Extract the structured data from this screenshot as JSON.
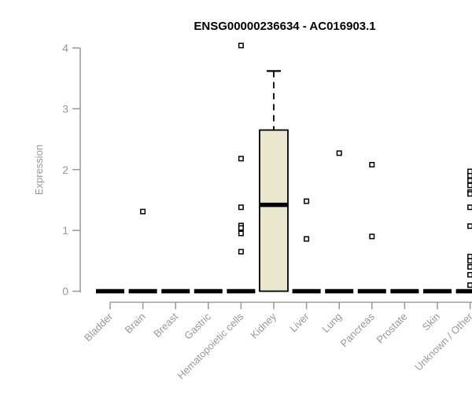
{
  "chart_data": {
    "type": "boxplot",
    "title": "ENSG00000236634 - AC016903.1",
    "ylabel": "Expression",
    "xlabel": "",
    "ylim": [
      0,
      4.1
    ],
    "yticks": [
      0,
      1,
      2,
      3,
      4
    ],
    "grid": "off",
    "legend": "none",
    "categories": [
      "Bladder",
      "Brain",
      "Breast",
      "Gastric",
      "Hematopoietic cells",
      "Kidney",
      "Liver",
      "Lung",
      "Pancreas",
      "Prostate",
      "Skin",
      "Unknown / Other"
    ],
    "series": [
      {
        "category": "Bladder",
        "q1": 0,
        "median": 0,
        "q3": 0,
        "whisker_low": 0,
        "whisker_high": 0,
        "outliers": []
      },
      {
        "category": "Brain",
        "q1": 0,
        "median": 0,
        "q3": 0,
        "whisker_low": 0,
        "whisker_high": 0,
        "outliers": [
          1.31
        ]
      },
      {
        "category": "Breast",
        "q1": 0,
        "median": 0,
        "q3": 0,
        "whisker_low": 0,
        "whisker_high": 0,
        "outliers": []
      },
      {
        "category": "Gastric",
        "q1": 0,
        "median": 0,
        "q3": 0,
        "whisker_low": 0,
        "whisker_high": 0,
        "outliers": []
      },
      {
        "category": "Hematopoietic cells",
        "q1": 0,
        "median": 0,
        "q3": 0,
        "whisker_low": 0,
        "whisker_high": 0,
        "outliers": [
          4.04,
          2.18,
          1.38,
          1.08,
          1.04,
          0.95,
          0.65
        ]
      },
      {
        "category": "Kidney",
        "q1": 0,
        "median": 1.42,
        "q3": 2.65,
        "whisker_low": 0,
        "whisker_high": 3.62,
        "outliers": []
      },
      {
        "category": "Liver",
        "q1": 0,
        "median": 0,
        "q3": 0,
        "whisker_low": 0,
        "whisker_high": 0,
        "outliers": [
          1.48,
          0.86
        ]
      },
      {
        "category": "Lung",
        "q1": 0,
        "median": 0,
        "q3": 0,
        "whisker_low": 0,
        "whisker_high": 0,
        "outliers": [
          2.27
        ]
      },
      {
        "category": "Pancreas",
        "q1": 0,
        "median": 0,
        "q3": 0,
        "whisker_low": 0,
        "whisker_high": 0,
        "outliers": [
          2.08,
          0.9
        ]
      },
      {
        "category": "Prostate",
        "q1": 0,
        "median": 0,
        "q3": 0,
        "whisker_low": 0,
        "whisker_high": 0,
        "outliers": []
      },
      {
        "category": "Skin",
        "q1": 0,
        "median": 0,
        "q3": 0,
        "whisker_low": 0,
        "whisker_high": 0,
        "outliers": []
      },
      {
        "category": "Unknown / Other",
        "q1": 0,
        "median": 0,
        "q3": 0,
        "whisker_low": 0,
        "whisker_high": 0,
        "outliers": [
          1.97,
          1.9,
          1.82,
          1.74,
          1.63,
          1.6,
          1.38,
          1.07,
          0.57,
          0.5,
          0.4,
          0.27,
          0.1
        ]
      }
    ],
    "colors": {
      "box_fill": "#EBE6CE",
      "box_stroke": "#000000",
      "median_color": "#000000",
      "outlier_color": "#000000",
      "axis_color": "#999999",
      "axis_text_color": "#999999",
      "title_color": "#000000"
    }
  }
}
